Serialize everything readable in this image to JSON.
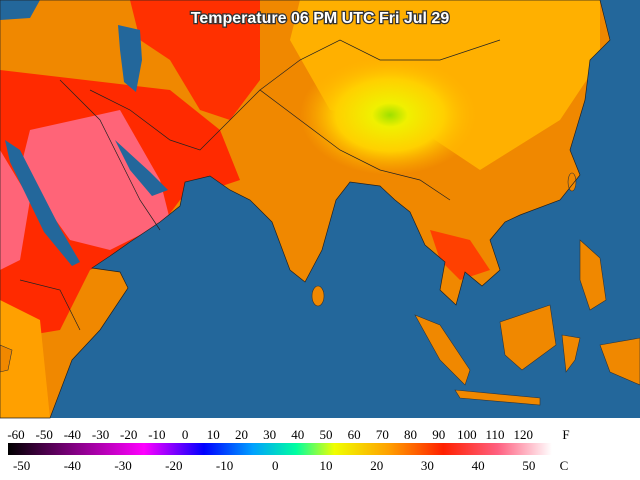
{
  "header": {
    "title": "Temperature 06 PM UTC Fri Jul 29"
  },
  "legend": {
    "fahrenheit": {
      "unit": "F",
      "labels": [
        -60,
        -50,
        -40,
        -30,
        -20,
        -10,
        0,
        10,
        20,
        30,
        40,
        50,
        60,
        70,
        80,
        90,
        100,
        110,
        120
      ]
    },
    "celsius": {
      "unit": "C",
      "labels": [
        -50,
        -40,
        -30,
        -20,
        -10,
        0,
        10,
        20,
        30,
        40,
        50
      ]
    }
  }
}
